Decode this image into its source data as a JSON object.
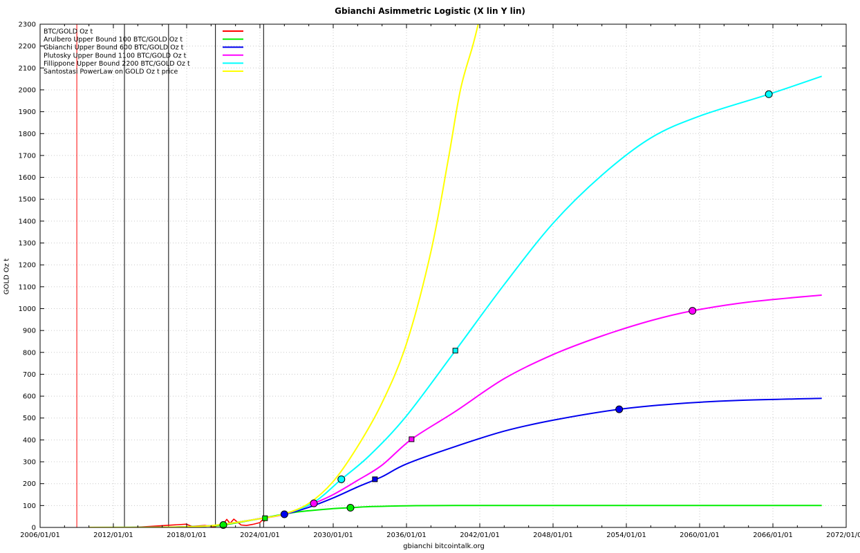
{
  "chart_data": {
    "type": "line",
    "title": "Gbianchi Asimmetric Logistic (X lin Y lin)",
    "xlabel": "gbianchi bitcointalk.org",
    "ylabel": "GOLD Oz t",
    "xlim": [
      "2006/01/01",
      "2072/01/01"
    ],
    "ylim": [
      0,
      2300
    ],
    "x_ticks": [
      "2006/01/01",
      "2012/01/01",
      "2018/01/01",
      "2024/01/01",
      "2030/01/01",
      "2036/01/01",
      "2042/01/01",
      "2048/01/01",
      "2054/01/01",
      "2060/01/01",
      "2066/01/01",
      "2072/01/01"
    ],
    "y_ticks": [
      0,
      100,
      200,
      300,
      400,
      500,
      600,
      700,
      800,
      900,
      1000,
      1100,
      1200,
      1300,
      1400,
      1500,
      1600,
      1700,
      1800,
      1900,
      2000,
      2100,
      2200,
      2300
    ],
    "grid": true,
    "legend_position": "top-left",
    "vertical_lines": [
      {
        "x": "2009/01/03",
        "color": "#ff0000"
      },
      {
        "x": "2012/11/28",
        "color": "#000000"
      },
      {
        "x": "2016/07/09",
        "color": "#000000"
      },
      {
        "x": "2020/05/11",
        "color": "#000000"
      },
      {
        "x": "2024/04/20",
        "color": "#000000"
      }
    ],
    "series": [
      {
        "name": "BTC/GOLD Oz t",
        "color": "#ff0000",
        "x": [
          "2010/07/17",
          "2013/12/01",
          "2017/12/17",
          "2018/06/01",
          "2019/06/26",
          "2020/03/15",
          "2021/01/01",
          "2021/04/14",
          "2021/07/20",
          "2021/11/10",
          "2022/06/18",
          "2022/11/21",
          "2023/06/01",
          "2024/01/01",
          "2024/03/14",
          "2024/06/01"
        ],
        "values": [
          0.0,
          0.9,
          15,
          5,
          9,
          3,
          15,
          37,
          18,
          38,
          11,
          9,
          14,
          22,
          34,
          28
        ]
      },
      {
        "name": "Arulbero Upper Bound 100  BTC/GOLD Oz t",
        "color": "#00ee00",
        "x": [
          "2010/01/01",
          "2016/01/01",
          "2020/01/01",
          "2021/01/01",
          "2024/01/01",
          "2027/01/01",
          "2030/01/01",
          "2031/06/01",
          "2033/01/01",
          "2036/01/01",
          "2040/01/01",
          "2050/01/01",
          "2060/01/01",
          "2070/01/01"
        ],
        "values": [
          0.1,
          1,
          7,
          11,
          40,
          70,
          86,
          90,
          95,
          99,
          100,
          100,
          100,
          100
        ],
        "markers": [
          {
            "x": "2021/01/01",
            "y": 11,
            "shape": "circle"
          },
          {
            "x": "2024/06/01",
            "y": 42,
            "shape": "square"
          },
          {
            "x": "2031/06/01",
            "y": 90,
            "shape": "circle"
          }
        ]
      },
      {
        "name": "Gbianchi Upper Bound 600  BTC/GOLD Oz t",
        "color": "#0000ee",
        "x": [
          "2010/01/01",
          "2016/01/01",
          "2020/01/01",
          "2024/01/01",
          "2026/01/01",
          "2028/01/01",
          "2030/01/01",
          "2032/01/01",
          "2034/01/01",
          "2036/01/01",
          "2040/01/01",
          "2044/01/01",
          "2048/01/01",
          "2053/06/01",
          "2058/01/01",
          "2063/01/01",
          "2070/01/01"
        ],
        "values": [
          0.1,
          1,
          8,
          40,
          60,
          92,
          135,
          185,
          232,
          290,
          370,
          440,
          490,
          540,
          565,
          580,
          590
        ],
        "markers": [
          {
            "x": "2026/01/01",
            "y": 60,
            "shape": "circle"
          },
          {
            "x": "2033/06/01",
            "y": 220,
            "shape": "square"
          },
          {
            "x": "2053/06/01",
            "y": 540,
            "shape": "circle"
          }
        ]
      },
      {
        "name": "Plutosky Upper Bound 1100  BTC/GOLD Oz t",
        "color": "#ff00ff",
        "x": [
          "2010/01/01",
          "2016/01/01",
          "2020/01/01",
          "2024/01/01",
          "2026/01/01",
          "2028/06/01",
          "2030/01/01",
          "2032/01/01",
          "2034/01/01",
          "2036/06/01",
          "2040/01/01",
          "2044/01/01",
          "2048/01/01",
          "2052/01/01",
          "2056/01/01",
          "2059/06/01",
          "2064/01/01",
          "2070/01/01"
        ],
        "values": [
          0.1,
          1,
          8,
          40,
          60,
          110,
          150,
          215,
          285,
          403,
          530,
          680,
          790,
          875,
          945,
          990,
          1030,
          1062
        ],
        "markers": [
          {
            "x": "2028/06/01",
            "y": 110,
            "shape": "circle"
          },
          {
            "x": "2036/06/01",
            "y": 403,
            "shape": "square"
          },
          {
            "x": "2059/06/01",
            "y": 990,
            "shape": "circle"
          }
        ]
      },
      {
        "name": "Fillippone Upper Bound 2200  BTC/GOLD Oz t",
        "color": "#00ffff",
        "x": [
          "2010/01/01",
          "2016/01/01",
          "2020/01/01",
          "2024/01/01",
          "2026/01/01",
          "2028/06/01",
          "2030/09/01",
          "2033/01/01",
          "2036/01/01",
          "2040/01/01",
          "2044/01/01",
          "2048/01/01",
          "2052/01/01",
          "2056/01/01",
          "2060/01/01",
          "2065/09/01",
          "2070/01/01"
        ],
        "values": [
          0.1,
          1,
          8,
          40,
          62,
          115,
          220,
          330,
          510,
          808,
          1110,
          1390,
          1610,
          1780,
          1880,
          1980,
          2062
        ],
        "markers": [
          {
            "x": "2030/09/01",
            "y": 220,
            "shape": "circle"
          },
          {
            "x": "2040/01/01",
            "y": 808,
            "shape": "square"
          },
          {
            "x": "2065/09/01",
            "y": 1980,
            "shape": "circle"
          }
        ]
      },
      {
        "name": "Santostasi PowerLaw on GOLD Oz t price",
        "color": "#ffff00",
        "x": [
          "2010/01/01",
          "2016/01/01",
          "2020/01/01",
          "2024/01/01",
          "2026/01/01",
          "2028/01/01",
          "2030/01/01",
          "2032/01/01",
          "2034/01/01",
          "2036/01/01",
          "2038/01/01",
          "2039/06/01",
          "2040/06/01",
          "2041/06/01",
          "2041/11/15"
        ],
        "values": [
          0.1,
          1,
          8,
          40,
          62,
          110,
          210,
          370,
          570,
          840,
          1260,
          1680,
          2000,
          2200,
          2300
        ]
      }
    ]
  }
}
